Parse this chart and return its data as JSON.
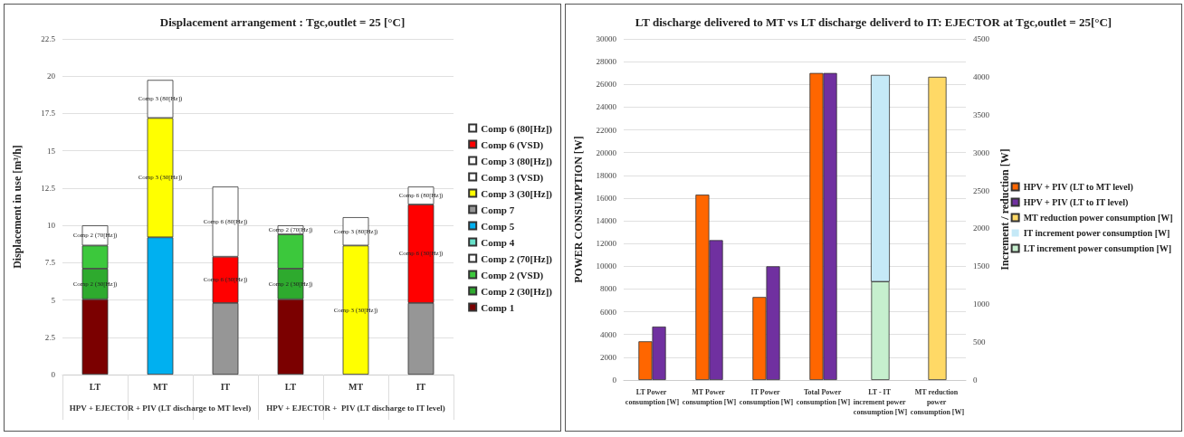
{
  "chart_data": [
    {
      "type": "bar",
      "title": "Displacement arrangement : Tgc,outlet = 25 [°C]",
      "ylabel": "Displacement in use [m³/h]",
      "categories": [
        "LT",
        "MT",
        "IT",
        "LT",
        "MT",
        "IT"
      ],
      "annotations": [
        "HPV + EJECTOR + PIV (LT discharge to MT level)",
        "HPV + EJECTOR +  PIV (LT discharge to IT level)"
      ],
      "stacked": true,
      "ylim": [
        0,
        22.5
      ],
      "yticks": [
        0,
        2.5,
        5,
        7.5,
        10,
        12.5,
        15,
        17.5,
        20,
        22.5
      ],
      "grid": "y",
      "legend": "right",
      "series": [
        {
          "name": "Comp 1",
          "color": "#7b0000",
          "values": [
            5.05,
            null,
            null,
            5.05,
            null,
            null
          ]
        },
        {
          "name": "Comp 2 (30[Hz])",
          "color": "#2eaa2e",
          "values": [
            2.05,
            null,
            null,
            2.05,
            null,
            null
          ],
          "value_labels": [
            "Comp 2 (30[Hz])",
            null,
            null,
            "Comp 2 (30[Hz])",
            null,
            null
          ]
        },
        {
          "name": "Comp 2 (VSD)",
          "color": "#3cc83c",
          "values": [
            1.55,
            null,
            null,
            2.3,
            null,
            null
          ]
        },
        {
          "name": "Comp 2 (70[Hz])",
          "color": "#ffffff",
          "values": [
            1.35,
            null,
            null,
            0.6,
            null,
            null
          ],
          "value_labels": [
            "Comp 2 (70[Hz])",
            null,
            null,
            "Comp 2 (70[Hz])",
            null,
            null
          ]
        },
        {
          "name": "Comp 4",
          "color": "#66e0c8",
          "values": [
            null,
            null,
            null,
            null,
            null,
            null
          ]
        },
        {
          "name": "Comp 5",
          "color": "#00b0f0",
          "values": [
            null,
            9.2,
            null,
            null,
            null,
            null
          ]
        },
        {
          "name": "Comp 7",
          "color": "#969696",
          "values": [
            null,
            null,
            4.8,
            null,
            null,
            4.8
          ]
        },
        {
          "name": "Comp 3 (30[Hz])",
          "color": "#ffff00",
          "values": [
            null,
            8.0,
            null,
            null,
            8.65,
            null
          ],
          "value_labels": [
            null,
            "Comp 3 (30[Hz])",
            null,
            null,
            "Comp 3 (30[Hz])",
            null
          ]
        },
        {
          "name": "Comp 3 (VSD)",
          "color": "#ffffff",
          "values": [
            null,
            null,
            null,
            null,
            null,
            null
          ]
        },
        {
          "name": "Comp 3 (80[Hz])",
          "color": "#ffffff",
          "values": [
            null,
            2.55,
            null,
            null,
            1.9,
            null
          ],
          "value_labels": [
            null,
            "Comp 3 (80[Hz])",
            null,
            null,
            "Comp 3 (80[Hz])",
            null
          ]
        },
        {
          "name": "Comp 6 (VSD)",
          "color": "#ff0000",
          "values": [
            null,
            null,
            3.1,
            null,
            null,
            6.6
          ],
          "value_labels": [
            null,
            null,
            "Comp 6 (30[Hz])",
            null,
            null,
            "Comp 6 (30[Hz])"
          ]
        },
        {
          "name": "Comp 6 (80[Hz])",
          "color": "#ffffff",
          "values": [
            null,
            null,
            4.7,
            null,
            null,
            1.2
          ],
          "value_labels": [
            null,
            null,
            "Comp 6 (80[Hz])",
            null,
            null,
            "Comp 6 (80[Hz])"
          ]
        }
      ]
    },
    {
      "type": "bar",
      "title": "LT discharge delivered to MT vs LT discharge deliverd to IT: EJECTOR at Tgc,outlet = 25[°C]",
      "ylabel": "POWER CONSUMPTION [W]",
      "y2label": "Increment / reduction [W]",
      "categories": [
        "LT Power consumption [W]",
        "MT Power consumption [W]",
        "IT Power consumption [W]",
        "Total Power consumption [W]",
        "LT - IT increment power consumption [W]",
        "MT reduction power consumption [W]"
      ],
      "ylim": [
        0,
        30000
      ],
      "yticks": [
        0,
        2000,
        4000,
        6000,
        8000,
        10000,
        12000,
        14000,
        16000,
        18000,
        20000,
        22000,
        24000,
        26000,
        28000,
        30000
      ],
      "y2lim": [
        0,
        4500
      ],
      "y2ticks": [
        0,
        500,
        1000,
        1500,
        2000,
        2500,
        3000,
        3500,
        4000,
        4500
      ],
      "grid": "y",
      "legend": "right",
      "series": [
        {
          "name": "HPV + PIV (LT to MT level)",
          "color": "#ff6600",
          "values": [
            3400,
            16300,
            7300,
            27000,
            null,
            null
          ]
        },
        {
          "name": "HPV + PIV (LT to IT level)",
          "color": "#7030a0",
          "values": [
            4700,
            12300,
            10000,
            27000,
            null,
            null
          ]
        },
        {
          "name": "MT reduction power consumption [W]",
          "color": "#ffd966",
          "axis": "y2",
          "values": [
            null,
            null,
            null,
            null,
            null,
            4000
          ]
        },
        {
          "name": "IT increment power consumption [W]",
          "color": "#c5e9f7",
          "axis": "y2",
          "values": [
            null,
            null,
            null,
            null,
            2720,
            null
          ],
          "base": [
            null,
            null,
            null,
            null,
            1300,
            null
          ]
        },
        {
          "name": "LT increment power consumption [W]",
          "color": "#c6efce",
          "axis": "y2",
          "values": [
            null,
            null,
            null,
            null,
            1300,
            null
          ]
        }
      ]
    }
  ]
}
